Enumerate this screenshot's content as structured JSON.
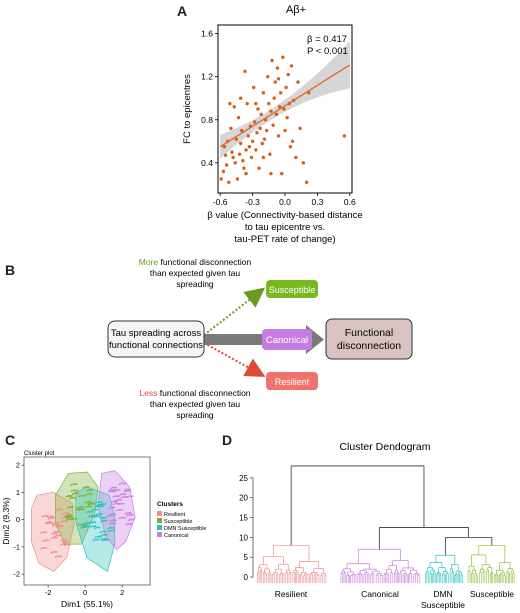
{
  "panels": {
    "A": {
      "letter": "A",
      "title": "Aβ+",
      "stats": {
        "beta": "β = 0.417",
        "p": "P < 0.001"
      },
      "ylabel": "FC to epicentres",
      "xlabel": [
        "β value (Connectivity-based distance",
        "to tau epicentre vs.",
        "tau-PET rate of change)"
      ]
    },
    "B": {
      "letter": "B",
      "source_label": [
        "Tau spreading across",
        "functional connections"
      ],
      "target_label": [
        "Functional",
        "disconnection"
      ],
      "box_susceptible": "Susceptible",
      "box_canonical": "Canonical",
      "box_resilient": "Resilient",
      "more_word": "More",
      "more_rest": " functional disconnection",
      "more_lines": [
        "than expected given tau",
        "spreading"
      ],
      "less_word": "Less",
      "less_rest": " functional disconnection",
      "less_lines": [
        "than expected given tau",
        "spreading"
      ],
      "colors": {
        "susceptible": "#78b821",
        "canonical": "#c57de4",
        "resilient": "#ef726c",
        "target": "#d9c3c1",
        "more": "#6a9b1e",
        "less": "#e0483a"
      }
    },
    "C": {
      "letter": "C",
      "plot_title": "Cluster plot",
      "xlabel": "Dim1 (55.1%)",
      "ylabel": "Dim2 (9.3%)",
      "legend_title": "Clusters",
      "legend": [
        "Resilient",
        "Susceptible",
        "DMN Susceptible",
        "Canonical"
      ],
      "colors": [
        "#f08c8c",
        "#7fb03a",
        "#2bc2c0",
        "#c77ee0"
      ]
    },
    "D": {
      "letter": "D",
      "title": "Cluster Dendogram",
      "cluster_labels": [
        "Resilient",
        "Canonical",
        "DMN Susceptible",
        "Susceptible"
      ],
      "cluster_label_lines": {
        "dmn": [
          "DMN",
          "Susceptible"
        ]
      }
    }
  },
  "chart_data": [
    {
      "type": "scatter",
      "panel": "A",
      "title": "Aβ+",
      "xlabel": "β value (Connectivity-based distance to tau epicentre vs. tau-PET rate of change)",
      "ylabel": "FC to epicentres",
      "xlim": [
        -0.62,
        0.62
      ],
      "ylim": [
        0.12,
        1.68
      ],
      "xticks": [
        -0.6,
        -0.3,
        0.0,
        0.3,
        0.6
      ],
      "xtick_labels": [
        "-0.6",
        "-0.3",
        "0.0",
        "0.3",
        "0.6"
      ],
      "yticks": [
        0.4,
        0.8,
        1.2,
        1.6
      ],
      "ytick_labels": [
        "0.4",
        "0.8",
        "1.2",
        "1.6"
      ],
      "fit": {
        "x": [
          -0.6,
          0.6
        ],
        "y": [
          0.55,
          1.31
        ]
      },
      "points": [
        [
          -0.59,
          0.25
        ],
        [
          -0.57,
          0.32
        ],
        [
          -0.56,
          0.55
        ],
        [
          -0.55,
          0.47
        ],
        [
          -0.54,
          0.38
        ],
        [
          -0.53,
          0.6
        ],
        [
          -0.52,
          0.22
        ],
        [
          -0.51,
          0.95
        ],
        [
          -0.5,
          0.72
        ],
        [
          -0.49,
          0.5
        ],
        [
          -0.48,
          0.45
        ],
        [
          -0.47,
          0.92
        ],
        [
          -0.46,
          0.4
        ],
        [
          -0.45,
          0.62
        ],
        [
          -0.44,
          0.25
        ],
        [
          -0.43,
          0.82
        ],
        [
          -0.42,
          0.48
        ],
        [
          -0.41,
          0.58
        ],
        [
          -0.4,
          0.7
        ],
        [
          -0.39,
          0.42
        ],
        [
          -0.38,
          0.35
        ],
        [
          -0.37,
          1.25
        ],
        [
          -0.36,
          0.52
        ],
        [
          -0.35,
          0.95
        ],
        [
          -0.34,
          0.65
        ],
        [
          -0.33,
          0.55
        ],
        [
          -0.32,
          0.74
        ],
        [
          -0.31,
          0.45
        ],
        [
          -0.3,
          0.6
        ],
        [
          -0.29,
          1.1
        ],
        [
          -0.28,
          0.78
        ],
        [
          -0.27,
          0.52
        ],
        [
          -0.26,
          0.68
        ],
        [
          -0.25,
          0.9
        ],
        [
          -0.24,
          0.35
        ],
        [
          -0.23,
          0.72
        ],
        [
          -0.22,
          0.85
        ],
        [
          -0.21,
          0.58
        ],
        [
          -0.2,
          1.05
        ],
        [
          -0.19,
          0.62
        ],
        [
          -0.18,
          0.8
        ],
        [
          -0.17,
          0.7
        ],
        [
          -0.16,
          1.2
        ],
        [
          -0.15,
          0.95
        ],
        [
          -0.14,
          0.48
        ],
        [
          -0.13,
          0.88
        ],
        [
          -0.12,
          1.35
        ],
        [
          -0.11,
          0.75
        ],
        [
          -0.1,
          1.0
        ],
        [
          -0.09,
          1.15
        ],
        [
          -0.08,
          0.85
        ],
        [
          -0.07,
          1.28
        ],
        [
          -0.06,
          0.65
        ],
        [
          -0.05,
          0.92
        ],
        [
          -0.04,
          1.05
        ],
        [
          -0.03,
          0.3
        ],
        [
          -0.02,
          1.38
        ],
        [
          -0.01,
          0.9
        ],
        [
          0.0,
          0.7
        ],
        [
          0.01,
          1.1
        ],
        [
          0.02,
          0.82
        ],
        [
          0.03,
          1.22
        ],
        [
          0.04,
          0.95
        ],
        [
          0.05,
          0.55
        ],
        [
          0.06,
          1.3
        ],
        [
          0.07,
          0.6
        ],
        [
          0.08,
          0.98
        ],
        [
          0.1,
          0.45
        ],
        [
          0.12,
          1.15
        ],
        [
          0.14,
          0.72
        ],
        [
          0.17,
          0.4
        ],
        [
          0.2,
          0.22
        ],
        [
          0.22,
          1.05
        ],
        [
          0.55,
          0.65
        ],
        [
          -0.41,
          1.0
        ],
        [
          -0.36,
          0.3
        ],
        [
          -0.27,
          0.95
        ],
        [
          -0.2,
          0.45
        ],
        [
          -0.13,
          0.3
        ],
        [
          -0.06,
          1.18
        ]
      ]
    },
    {
      "type": "scatter",
      "panel": "C",
      "title": "Cluster plot",
      "xlabel": "Dim1 (55.1%)",
      "ylabel": "Dim2 (9.3%)",
      "xlim": [
        -3.3,
        3.5
      ],
      "ylim": [
        -2.4,
        2.3
      ],
      "xticks": [
        -2,
        0,
        2
      ],
      "yticks": [
        -2,
        -1,
        0,
        1,
        2
      ],
      "hulls": [
        {
          "name": "Resilient",
          "points": [
            [
              -2.9,
              0.4
            ],
            [
              -2.6,
              0.9
            ],
            [
              -1.7,
              1.0
            ],
            [
              -0.7,
              0.6
            ],
            [
              -0.6,
              -0.2
            ],
            [
              -1.0,
              -1.4
            ],
            [
              -1.7,
              -1.9
            ],
            [
              -2.5,
              -1.6
            ],
            [
              -2.9,
              -0.8
            ]
          ]
        },
        {
          "name": "Canonical",
          "points": [
            [
              -1.6,
              0.9
            ],
            [
              -0.9,
              1.7
            ],
            [
              0.1,
              1.75
            ],
            [
              0.7,
              1.2
            ],
            [
              0.5,
              0.2
            ],
            [
              -0.2,
              -0.9
            ],
            [
              -1.1,
              -0.9
            ],
            [
              -1.6,
              -0.1
            ]
          ]
        },
        {
          "name": "DMN Susceptible",
          "points": [
            [
              -0.5,
              1.0
            ],
            [
              0.1,
              1.2
            ],
            [
              1.3,
              0.9
            ],
            [
              1.6,
              0.1
            ],
            [
              1.6,
              -0.9
            ],
            [
              1.2,
              -1.9
            ],
            [
              0.1,
              -1.4
            ],
            [
              -0.5,
              -0.1
            ]
          ]
        },
        {
          "name": "Susceptible",
          "points": [
            [
              0.9,
              1.7
            ],
            [
              1.6,
              1.8
            ],
            [
              2.4,
              1.2
            ],
            [
              2.7,
              0.1
            ],
            [
              2.2,
              -0.8
            ],
            [
              1.7,
              -1.1
            ],
            [
              1.1,
              -0.6
            ],
            [
              0.7,
              0.5
            ]
          ]
        }
      ]
    },
    {
      "type": "dendrogram",
      "panel": "D",
      "title": "Cluster Dendogram",
      "yticks": [
        0,
        5,
        10,
        15,
        20,
        25
      ],
      "ylim": [
        -2,
        30
      ],
      "clusters": [
        "Resilient",
        "Canonical",
        "DMN Susceptible",
        "Susceptible"
      ],
      "merge_heights": {
        "root": 28,
        "resilient": 8,
        "right": 12.5,
        "dmn_susc": 10,
        "canonical": 7,
        "dmn": 5.5,
        "susceptible": 8
      }
    }
  ]
}
